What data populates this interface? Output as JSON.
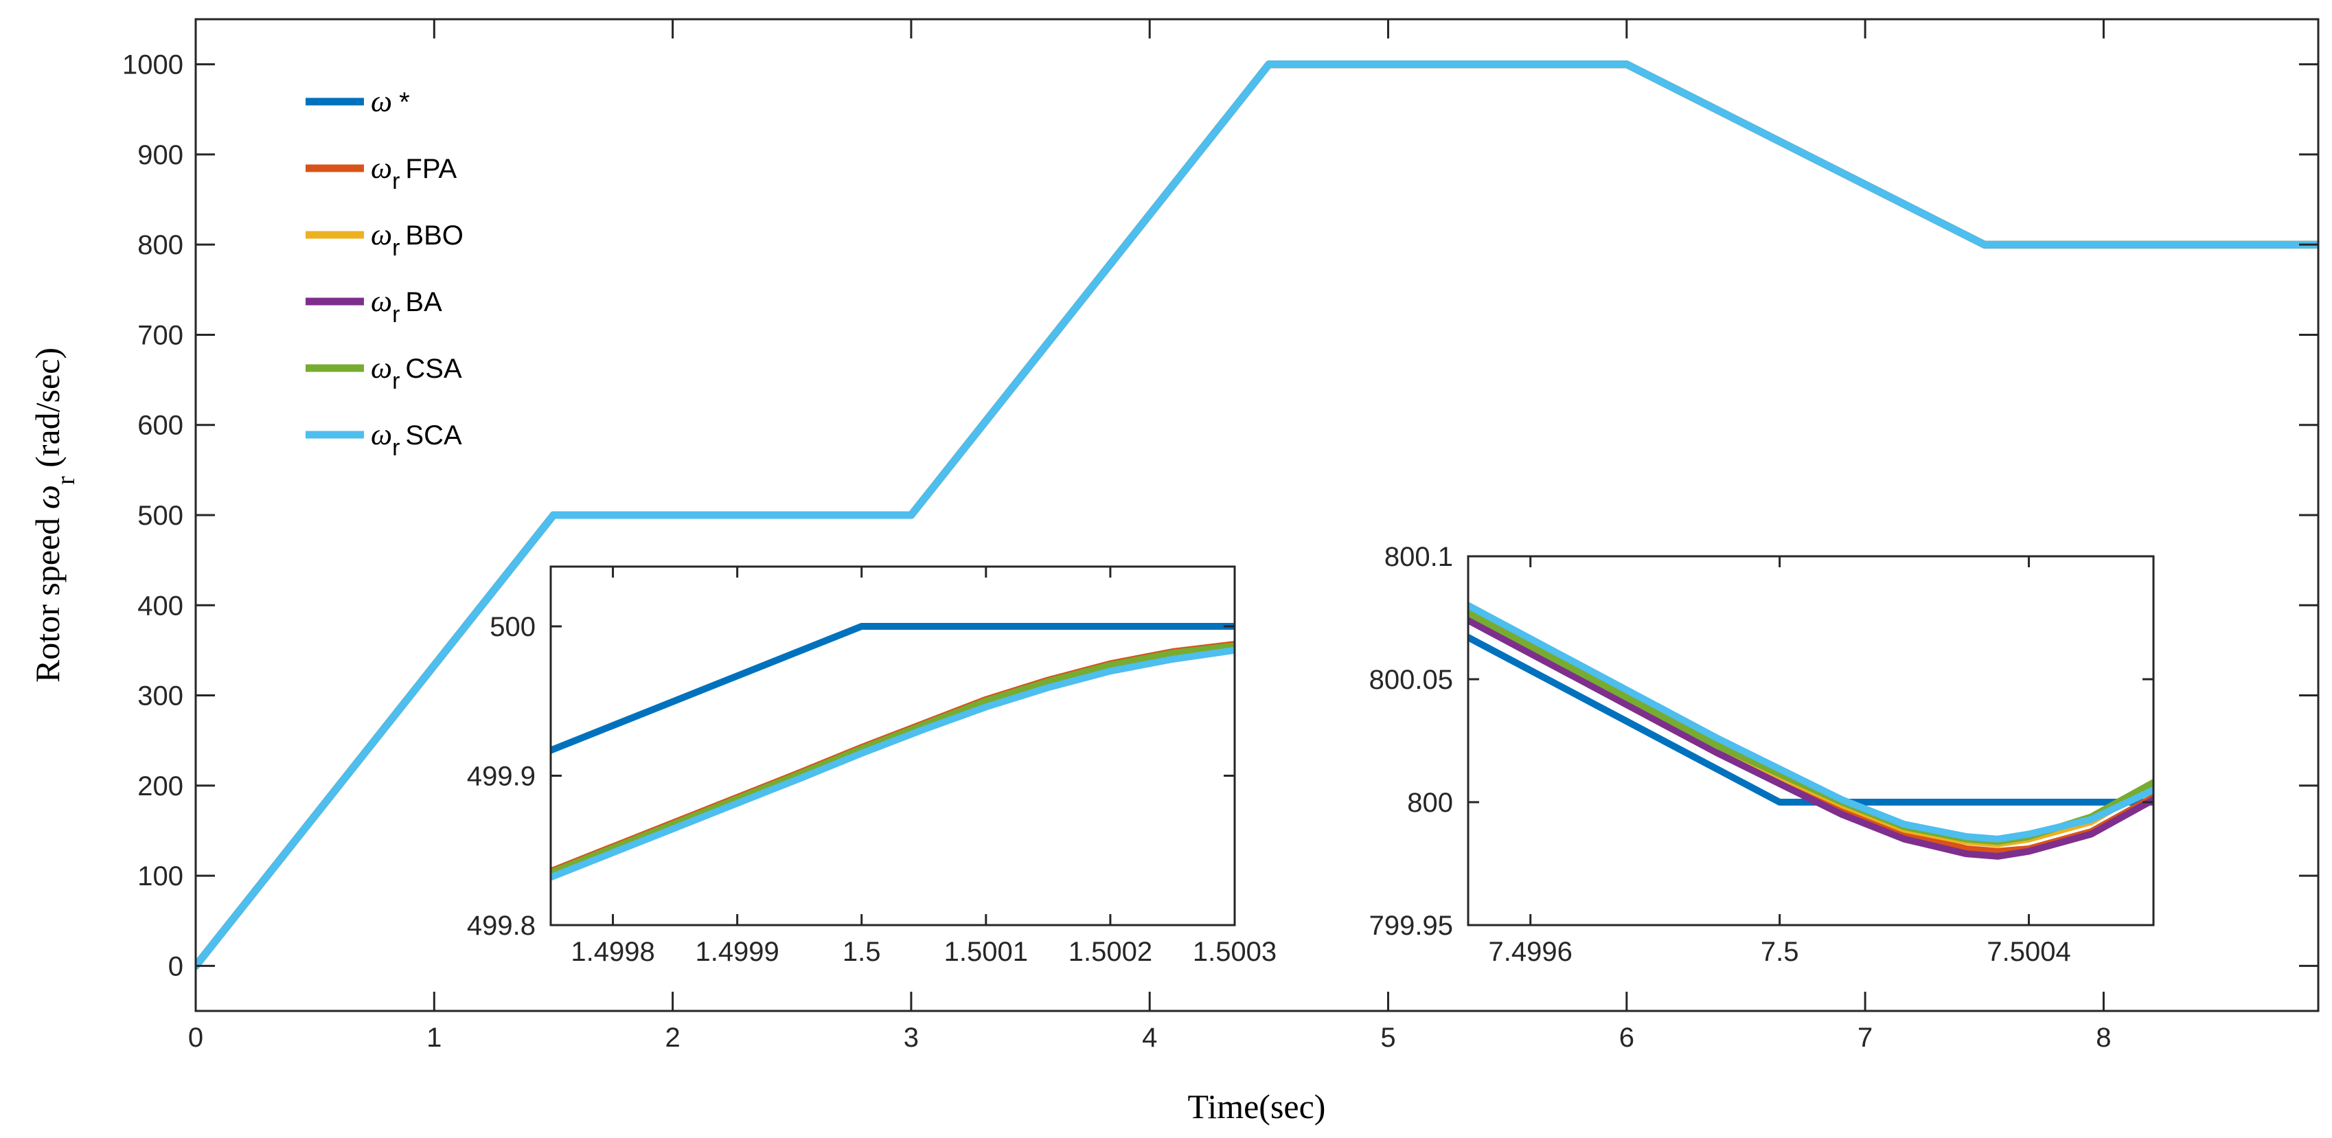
{
  "chart_data": [
    {
      "type": "line",
      "name": "main",
      "title": "",
      "xlabel": "Time(sec)",
      "ylabel_prefix": "Rotor speed ",
      "ylabel_symbol": "ω",
      "ylabel_subscript": "r",
      "ylabel_suffix": " (rad/sec)",
      "xlim": [
        0,
        8.9
      ],
      "ylim": [
        -50,
        1050
      ],
      "xticks": [
        0,
        1,
        2,
        3,
        4,
        5,
        6,
        7,
        8
      ],
      "xticklabels": [
        "0",
        "1",
        "2",
        "3",
        "4",
        "5",
        "6",
        "7",
        "8"
      ],
      "yticks": [
        0,
        100,
        200,
        300,
        400,
        500,
        600,
        700,
        800,
        900,
        1000
      ],
      "yticklabels": [
        "0",
        "100",
        "200",
        "300",
        "400",
        "500",
        "600",
        "700",
        "800",
        "900",
        "1000"
      ],
      "grid": false,
      "legend_position": "top-left",
      "series": [
        {
          "name": "ω *",
          "symbol": "ω",
          "sub": "",
          "label": "*",
          "color": "#0072BD",
          "x": [
            0,
            1.5,
            3,
            4.5,
            6,
            7.5,
            8.9
          ],
          "y": [
            0,
            500,
            500,
            1000,
            1000,
            800,
            800
          ]
        },
        {
          "name": "ωr FPA",
          "symbol": "ω",
          "sub": "r",
          "label": "FPA",
          "color": "#D95319",
          "x": [
            0,
            1.5,
            3,
            4.5,
            6,
            7.5,
            8.9
          ],
          "y": [
            0,
            500,
            500,
            1000,
            1000,
            800,
            800
          ]
        },
        {
          "name": "ωr BBO",
          "symbol": "ω",
          "sub": "r",
          "label": "BBO",
          "color": "#EDB120",
          "x": [
            0,
            1.5,
            3,
            4.5,
            6,
            7.5,
            8.9
          ],
          "y": [
            0,
            500,
            500,
            1000,
            1000,
            800,
            800
          ]
        },
        {
          "name": "ωr BA",
          "symbol": "ω",
          "sub": "r",
          "label": "BA",
          "color": "#7E2F8E",
          "x": [
            0,
            1.5,
            3,
            4.5,
            6,
            7.5,
            8.9
          ],
          "y": [
            0,
            500,
            500,
            1000,
            1000,
            800,
            800
          ]
        },
        {
          "name": "ωr CSA",
          "symbol": "ω",
          "sub": "r",
          "label": "CSA",
          "color": "#77AC30",
          "x": [
            0,
            1.5,
            3,
            4.5,
            6,
            7.5,
            8.9
          ],
          "y": [
            0,
            500,
            500,
            1000,
            1000,
            800,
            800
          ]
        },
        {
          "name": "ωr SCA",
          "symbol": "ω",
          "sub": "r",
          "label": "SCA",
          "color": "#4DBEEE",
          "x": [
            0,
            1.5,
            3,
            4.5,
            6,
            7.5,
            8.9
          ],
          "y": [
            0,
            500,
            500,
            1000,
            1000,
            800,
            800
          ]
        }
      ]
    },
    {
      "type": "line",
      "name": "inset-1",
      "title": "",
      "xlim": [
        1.49975,
        1.5003
      ],
      "ylim": [
        499.8,
        500.04
      ],
      "xticks": [
        1.4998,
        1.4999,
        1.5,
        1.5001,
        1.5002,
        1.5003
      ],
      "xticklabels": [
        "1.4998",
        "1.4999",
        "1.5",
        "1.5001",
        "1.5002",
        "1.5003"
      ],
      "yticks": [
        499.8,
        499.9,
        500
      ],
      "yticklabels": [
        "499.8",
        "499.9",
        "500"
      ],
      "series": [
        {
          "name": "ω *",
          "color": "#0072BD",
          "x": [
            1.49975,
            1.5,
            1.5003
          ],
          "y": [
            499.917,
            500.0,
            500.0
          ]
        },
        {
          "name": "ωr FPA",
          "color": "#D95319",
          "x": [
            1.49975,
            1.49985,
            1.49995,
            1.5,
            1.50005,
            1.5001,
            1.50015,
            1.5002,
            1.50025,
            1.5003
          ],
          "y": [
            499.836,
            499.869,
            499.902,
            499.919,
            499.935,
            499.951,
            499.964,
            499.975,
            499.983,
            499.988
          ]
        },
        {
          "name": "ωr BBO",
          "color": "#EDB120",
          "x": [
            1.49975,
            1.49985,
            1.49995,
            1.5,
            1.50005,
            1.5001,
            1.50015,
            1.5002,
            1.50025,
            1.5003
          ],
          "y": [
            499.835,
            499.868,
            499.901,
            499.918,
            499.934,
            499.95,
            499.963,
            499.974,
            499.982,
            499.987
          ]
        },
        {
          "name": "ωr BA",
          "color": "#7E2F8E",
          "x": [
            1.49975,
            1.49985,
            1.49995,
            1.5,
            1.50005,
            1.5001,
            1.50015,
            1.5002,
            1.50025,
            1.5003
          ],
          "y": [
            499.835,
            499.868,
            499.901,
            499.918,
            499.934,
            499.95,
            499.963,
            499.974,
            499.982,
            499.987
          ]
        },
        {
          "name": "ωr CSA",
          "color": "#77AC30",
          "x": [
            1.49975,
            1.49985,
            1.49995,
            1.5,
            1.50005,
            1.5001,
            1.50015,
            1.5002,
            1.50025,
            1.5003
          ],
          "y": [
            499.835,
            499.868,
            499.901,
            499.918,
            499.934,
            499.95,
            499.963,
            499.974,
            499.982,
            499.987
          ]
        },
        {
          "name": "ωr SCA",
          "color": "#4DBEEE",
          "x": [
            1.49975,
            1.49985,
            1.49995,
            1.5,
            1.50005,
            1.5001,
            1.50015,
            1.5002,
            1.50025,
            1.5003
          ],
          "y": [
            499.832,
            499.865,
            499.898,
            499.915,
            499.931,
            499.946,
            499.959,
            499.97,
            499.978,
            499.984
          ]
        }
      ]
    },
    {
      "type": "line",
      "name": "inset-2",
      "title": "",
      "xlim": [
        7.4995,
        7.5006
      ],
      "ylim": [
        799.95,
        800.1
      ],
      "xticks": [
        7.4996,
        7.5,
        7.5004
      ],
      "xticklabels": [
        "7.4996",
        "7.5",
        "7.5004"
      ],
      "yticks": [
        799.95,
        800,
        800.05,
        800.1
      ],
      "yticklabels": [
        "799.95",
        "800",
        "800.05",
        "800.1"
      ],
      "series": [
        {
          "name": "ω *",
          "color": "#0072BD",
          "x": [
            7.4995,
            7.5,
            7.5006
          ],
          "y": [
            800.067,
            800.0,
            800.0
          ]
        },
        {
          "name": "ωr FPA",
          "color": "#D95319",
          "x": [
            7.4995,
            7.4997,
            7.4999,
            7.5001,
            7.5002,
            7.5003,
            7.50035,
            7.5004,
            7.5005,
            7.5006
          ],
          "y": [
            800.074,
            800.047,
            800.02,
            799.996,
            799.987,
            799.981,
            799.98,
            799.981,
            799.988,
            800.002
          ]
        },
        {
          "name": "ωr BBO",
          "color": "#EDB120",
          "x": [
            7.4995,
            7.4997,
            7.4999,
            7.5001,
            7.5002,
            7.5003,
            7.50035,
            7.5004,
            7.5005,
            7.5006
          ],
          "y": [
            800.076,
            800.049,
            800.022,
            799.999,
            799.989,
            799.984,
            799.983,
            799.985,
            799.992,
            800.007
          ]
        },
        {
          "name": "ωr BA",
          "color": "#7E2F8E",
          "x": [
            7.4995,
            7.4997,
            7.4999,
            7.5001,
            7.5002,
            7.5003,
            7.50035,
            7.5004,
            7.5005,
            7.5006
          ],
          "y": [
            800.074,
            800.047,
            800.02,
            799.995,
            799.985,
            799.979,
            799.978,
            799.98,
            799.987,
            800.001
          ]
        },
        {
          "name": "ωr CSA",
          "color": "#77AC30",
          "x": [
            7.4995,
            7.4997,
            7.4999,
            7.5001,
            7.5002,
            7.5003,
            7.50035,
            7.5004,
            7.5005,
            7.5006
          ],
          "y": [
            800.077,
            800.05,
            800.023,
            800.0,
            799.99,
            799.985,
            799.984,
            799.986,
            799.994,
            800.008
          ]
        },
        {
          "name": "ωr SCA",
          "color": "#4DBEEE",
          "x": [
            7.4995,
            7.4997,
            7.4999,
            7.5001,
            7.5002,
            7.5003,
            7.50035,
            7.5004,
            7.5005,
            7.5006
          ],
          "y": [
            800.08,
            800.053,
            800.026,
            800.001,
            799.991,
            799.986,
            799.985,
            799.987,
            799.993,
            800.005
          ]
        }
      ]
    }
  ]
}
